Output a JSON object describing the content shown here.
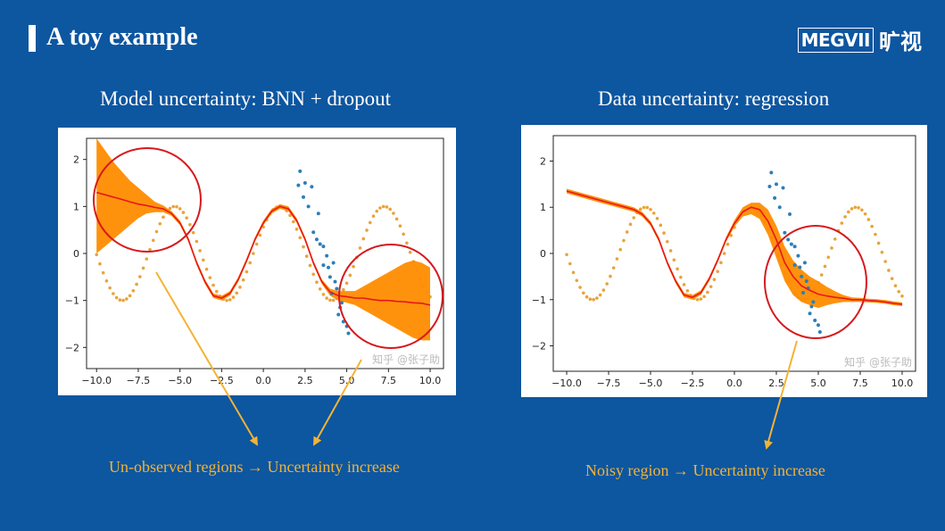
{
  "slide": {
    "title": "A toy example",
    "logo_text": "MEGVII",
    "logo_cn": "旷视"
  },
  "panels": [
    {
      "title": "Model uncertainty: BNN + dropout",
      "caption": "Un-observed regions → Uncertainty increase",
      "watermark": "知乎 @张子助"
    },
    {
      "title": "Data uncertainty: regression",
      "caption": "Noisy region → Uncertainty increase",
      "watermark": "知乎 @张子助"
    }
  ],
  "colors": {
    "background": "#0d56a0",
    "caption": "#f3b335",
    "band": "#ff8c00",
    "mean_line": "#e8171a",
    "true_curve": "#e8a33a",
    "observed": "#2c7fb8",
    "circle": "#d7191c"
  },
  "chart_data": [
    {
      "type": "line",
      "title": "",
      "xlim": [
        -10.6,
        10.8
      ],
      "ylim": [
        -2.45,
        2.45
      ],
      "xticks": [
        -10.0,
        -7.5,
        -5.0,
        -2.5,
        0.0,
        2.5,
        5.0,
        7.5,
        10.0
      ],
      "xtick_labels": [
        "−10.0",
        "−7.5",
        "−5.0",
        "−2.5",
        "0.0",
        "2.5",
        "5.0",
        "7.5",
        "10.0"
      ],
      "yticks": [
        2,
        1,
        0,
        -1,
        -2
      ],
      "ytick_labels": [
        "2",
        "1",
        "0",
        "−1",
        "−2"
      ],
      "series": [
        {
          "role": "true_function",
          "x_range": [
            -10,
            10
          ],
          "function": "sin(x+0.6)",
          "style": "dotted"
        },
        {
          "role": "observations",
          "x": [
            2.2,
            2.5,
            2.7,
            3.0,
            3.2,
            3.4,
            3.6,
            3.8,
            4.0,
            4.2,
            4.4,
            4.6,
            4.8,
            5.0,
            2.4,
            3.3,
            3.9,
            4.5,
            5.1,
            2.1,
            2.9,
            4.1,
            4.7,
            3.6,
            4.3
          ],
          "y": [
            1.75,
            1.5,
            1.0,
            0.45,
            0.3,
            0.2,
            -0.25,
            -0.05,
            -0.5,
            -0.2,
            -0.75,
            -1.15,
            -1.45,
            -1.55,
            1.2,
            0.85,
            -0.3,
            -1.3,
            -1.7,
            1.45,
            1.42,
            -0.85,
            -1.05,
            0.15,
            -0.6
          ]
        },
        {
          "role": "predictive_mean",
          "x": [
            -10.0,
            -9.5,
            -9.0,
            -8.5,
            -8.0,
            -7.5,
            -7.0,
            -6.5,
            -6.0,
            -5.5,
            -5.0,
            -4.5,
            -4.0,
            -3.5,
            -3.0,
            -2.5,
            -2.0,
            -1.5,
            -1.0,
            -0.5,
            0.0,
            0.5,
            1.0,
            1.5,
            2.0,
            2.5,
            3.0,
            3.5,
            4.0,
            4.5,
            5.0,
            5.5,
            6.0,
            6.5,
            7.0,
            7.5,
            8.0,
            8.5,
            9.0,
            9.5,
            10.0
          ],
          "y": [
            1.3,
            1.25,
            1.2,
            1.15,
            1.1,
            1.05,
            1.02,
            0.98,
            0.95,
            0.85,
            0.65,
            0.3,
            -0.2,
            -0.6,
            -0.9,
            -0.95,
            -0.85,
            -0.55,
            -0.15,
            0.3,
            0.65,
            0.9,
            1.0,
            0.95,
            0.7,
            0.3,
            -0.2,
            -0.6,
            -0.82,
            -0.9,
            -0.92,
            -0.95,
            -0.95,
            -0.98,
            -1.0,
            -1.0,
            -1.02,
            -1.03,
            -1.05,
            -1.06,
            -1.1
          ],
          "lower": [
            -0.0,
            0.15,
            0.3,
            0.45,
            0.6,
            0.75,
            0.85,
            0.88,
            0.88,
            0.8,
            0.6,
            0.25,
            -0.25,
            -0.65,
            -0.95,
            -1.0,
            -0.9,
            -0.6,
            -0.2,
            0.25,
            0.6,
            0.85,
            0.95,
            0.9,
            0.65,
            0.25,
            -0.25,
            -0.65,
            -0.9,
            -1.0,
            -1.05,
            -1.1,
            -1.2,
            -1.3,
            -1.4,
            -1.5,
            -1.6,
            -1.7,
            -1.8,
            -1.85,
            -1.85
          ],
          "upper": [
            2.45,
            2.2,
            1.95,
            1.75,
            1.55,
            1.4,
            1.25,
            1.1,
            1.02,
            0.9,
            0.7,
            0.35,
            -0.15,
            -0.55,
            -0.85,
            -0.9,
            -0.8,
            -0.5,
            -0.1,
            0.35,
            0.7,
            0.95,
            1.05,
            1.0,
            0.75,
            0.35,
            -0.15,
            -0.55,
            -0.75,
            -0.8,
            -0.8,
            -0.8,
            -0.7,
            -0.6,
            -0.5,
            -0.4,
            -0.3,
            -0.2,
            -0.15,
            -0.2,
            -0.3
          ]
        }
      ]
    },
    {
      "type": "line",
      "title": "",
      "xlim": [
        -10.8,
        10.8
      ],
      "ylim": [
        -2.55,
        2.55
      ],
      "xticks": [
        -10.0,
        -7.5,
        -5.0,
        -2.5,
        0.0,
        2.5,
        5.0,
        7.5,
        10.0
      ],
      "xtick_labels": [
        "−10.0",
        "−7.5",
        "−5.0",
        "−2.5",
        "0.0",
        "2.5",
        "5.0",
        "7.5",
        "10.0"
      ],
      "yticks": [
        2,
        1,
        0,
        -1,
        -2
      ],
      "ytick_labels": [
        "2",
        "1",
        "0",
        "−1",
        "−2"
      ],
      "series": [
        {
          "role": "true_function",
          "x_range": [
            -10,
            10
          ],
          "function": "sin(x+0.6)",
          "style": "dotted"
        },
        {
          "role": "observations",
          "x": [
            2.2,
            2.5,
            2.7,
            3.0,
            3.2,
            3.4,
            3.6,
            3.8,
            4.0,
            4.2,
            4.4,
            4.6,
            4.8,
            5.0,
            2.4,
            3.3,
            3.9,
            4.5,
            5.1,
            2.1,
            2.9,
            4.1,
            4.7,
            3.6,
            4.3
          ],
          "y": [
            1.75,
            1.5,
            1.0,
            0.45,
            0.3,
            0.2,
            -0.25,
            -0.05,
            -0.5,
            -0.2,
            -0.75,
            -1.15,
            -1.45,
            -1.55,
            1.2,
            0.85,
            -0.3,
            -1.3,
            -1.7,
            1.45,
            1.42,
            -0.85,
            -1.05,
            0.15,
            -0.6
          ]
        },
        {
          "role": "predictive_mean",
          "x": [
            -10.0,
            -9.5,
            -9.0,
            -8.5,
            -8.0,
            -7.5,
            -7.0,
            -6.5,
            -6.0,
            -5.5,
            -5.0,
            -4.5,
            -4.0,
            -3.5,
            -3.0,
            -2.5,
            -2.0,
            -1.5,
            -1.0,
            -0.5,
            0.0,
            0.5,
            1.0,
            1.5,
            2.0,
            2.5,
            3.0,
            3.5,
            4.0,
            4.5,
            5.0,
            5.5,
            6.0,
            6.5,
            7.0,
            7.5,
            8.0,
            8.5,
            9.0,
            9.5,
            10.0
          ],
          "y": [
            1.35,
            1.3,
            1.25,
            1.2,
            1.15,
            1.1,
            1.05,
            1.0,
            0.95,
            0.85,
            0.65,
            0.3,
            -0.2,
            -0.6,
            -0.9,
            -0.95,
            -0.85,
            -0.55,
            -0.15,
            0.3,
            0.65,
            0.9,
            1.0,
            0.95,
            0.7,
            0.3,
            -0.2,
            -0.5,
            -0.7,
            -0.8,
            -0.88,
            -0.92,
            -0.95,
            -0.97,
            -1.0,
            -1.0,
            -1.02,
            -1.03,
            -1.05,
            -1.08,
            -1.1
          ],
          "lower": [
            1.3,
            1.25,
            1.2,
            1.15,
            1.1,
            1.05,
            1.0,
            0.95,
            0.9,
            0.8,
            0.6,
            0.25,
            -0.25,
            -0.65,
            -0.95,
            -1.0,
            -0.9,
            -0.6,
            -0.2,
            0.25,
            0.58,
            0.8,
            0.85,
            0.75,
            0.4,
            -0.1,
            -0.6,
            -0.9,
            -1.05,
            -1.12,
            -1.18,
            -1.12,
            -1.08,
            -1.05,
            -1.05,
            -1.05,
            -1.06,
            -1.07,
            -1.09,
            -1.12,
            -1.14
          ],
          "upper": [
            1.4,
            1.35,
            1.3,
            1.25,
            1.2,
            1.15,
            1.1,
            1.05,
            1.0,
            0.9,
            0.7,
            0.35,
            -0.15,
            -0.55,
            -0.85,
            -0.9,
            -0.8,
            -0.5,
            -0.1,
            0.35,
            0.72,
            1.0,
            1.1,
            1.1,
            0.95,
            0.6,
            0.15,
            -0.15,
            -0.35,
            -0.5,
            -0.6,
            -0.72,
            -0.82,
            -0.9,
            -0.95,
            -0.96,
            -0.98,
            -0.99,
            -1.01,
            -1.04,
            -1.06
          ]
        }
      ]
    }
  ]
}
